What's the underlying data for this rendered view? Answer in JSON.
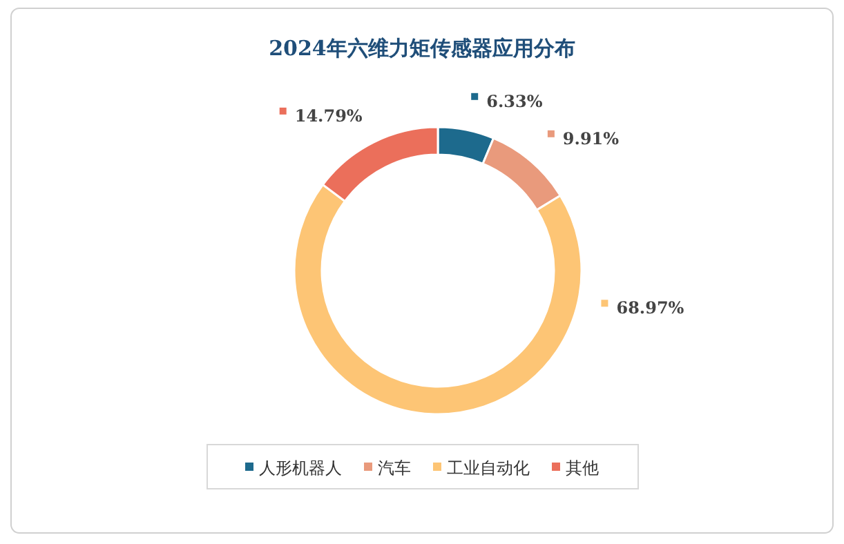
{
  "chart_data": {
    "type": "donut",
    "title": "2024年六维力矩传感器应用分布",
    "categories": [
      "人形机器人",
      "汽车",
      "工业自动化",
      "其他"
    ],
    "values": [
      6.33,
      9.91,
      68.97,
      14.79
    ],
    "colors": [
      "#1d6a8d",
      "#e99a7c",
      "#fdc575",
      "#eb6f5b"
    ],
    "value_labels": [
      "6.33%",
      "9.91%",
      "68.97%",
      "14.79%"
    ],
    "legend": "bottom"
  }
}
